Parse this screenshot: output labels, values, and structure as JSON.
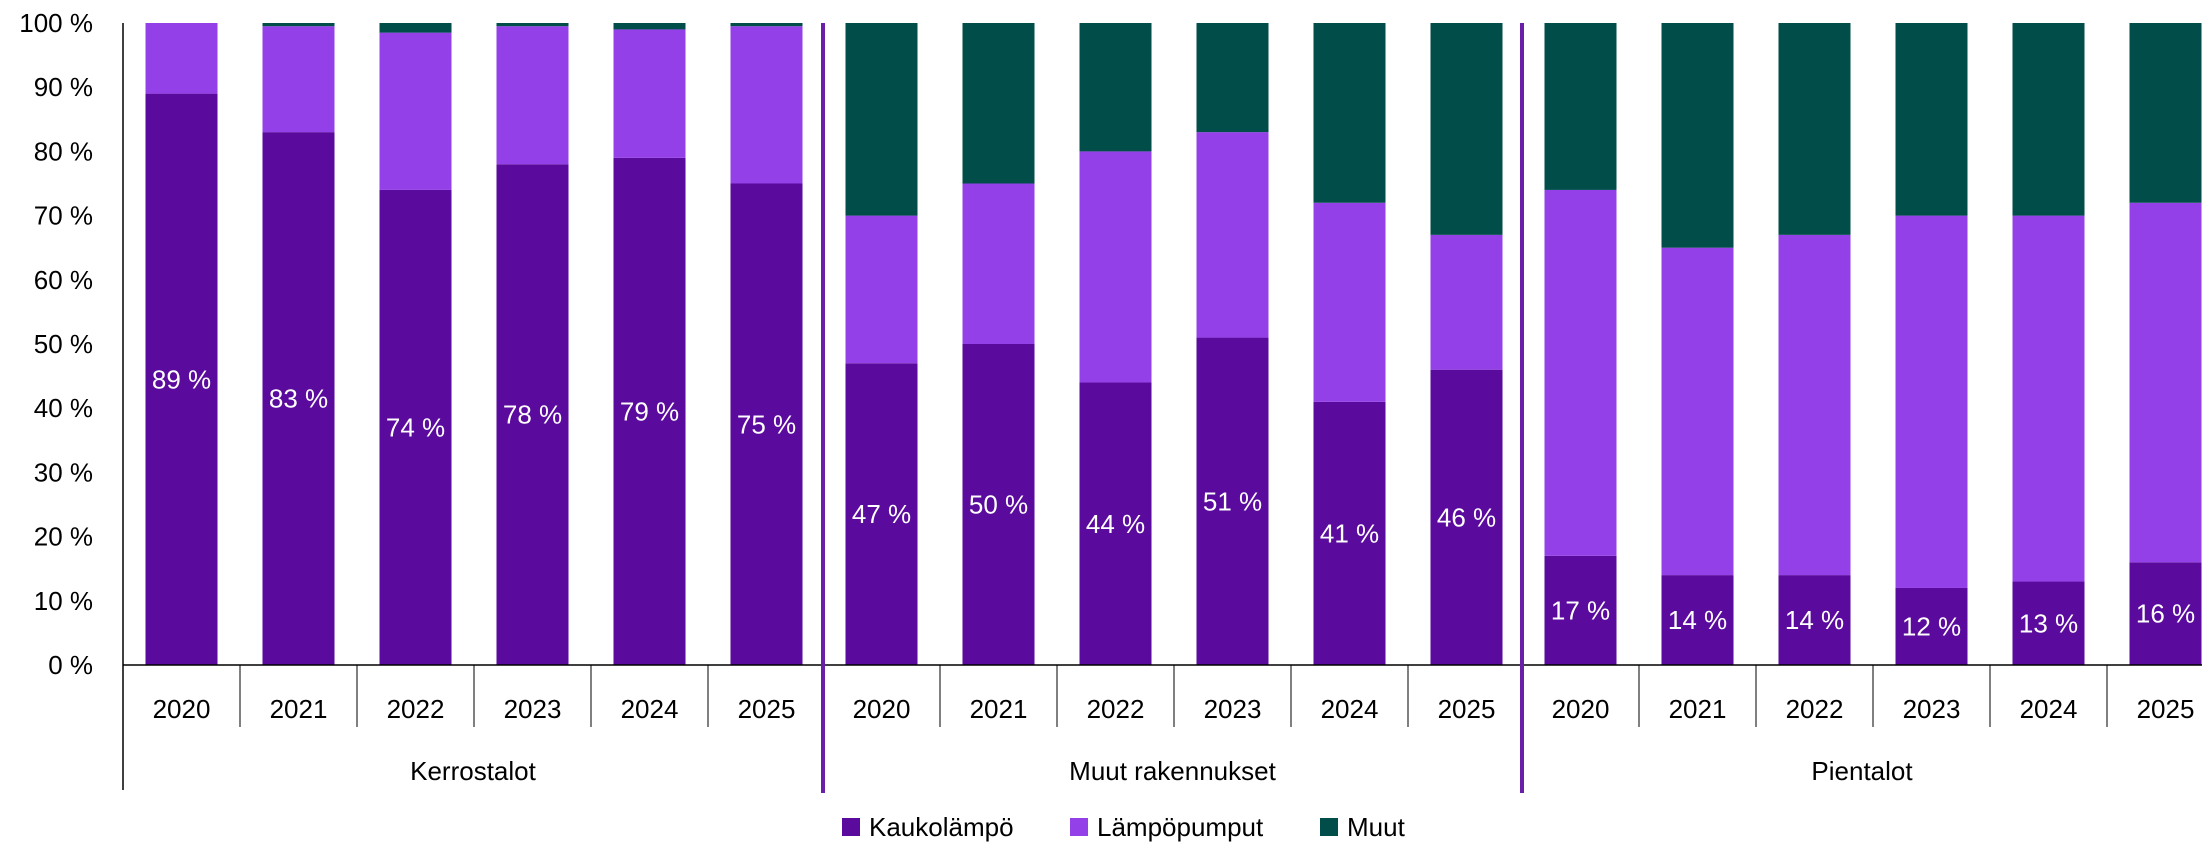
{
  "chart_data": {
    "type": "bar",
    "stacked": true,
    "ylim": [
      0,
      100
    ],
    "yticks": [
      "0 %",
      "10 %",
      "20 %",
      "30 %",
      "40 %",
      "50 %",
      "60 %",
      "70 %",
      "80 %",
      "90 %",
      "100 %"
    ],
    "grid": false,
    "legend_position": "bottom",
    "series_order": [
      "Kaukolämpö",
      "Lämpöpumput",
      "Muut"
    ],
    "colors": {
      "Kaukolämpö": "#5a0a9c",
      "Lämpöpumput": "#9340e8",
      "Muut": "#004d4a",
      "separator": "#6a1fa8"
    },
    "groups": [
      {
        "name": "Kerrostalot",
        "categories": [
          "2020",
          "2021",
          "2022",
          "2023",
          "2024",
          "2025"
        ],
        "series": [
          {
            "name": "Kaukolämpö",
            "values": [
              89,
              83,
              74,
              78,
              79,
              75
            ],
            "labels": [
              "89 %",
              "83 %",
              "74 %",
              "78 %",
              "79 %",
              "75 %"
            ]
          },
          {
            "name": "Lämpöpumput",
            "values": [
              11,
              16.5,
              24.5,
              21.5,
              20,
              24.5
            ]
          },
          {
            "name": "Muut",
            "values": [
              0,
              0.5,
              1.5,
              0.5,
              1,
              0.5
            ]
          }
        ]
      },
      {
        "name": "Muut rakennukset",
        "categories": [
          "2020",
          "2021",
          "2022",
          "2023",
          "2024",
          "2025"
        ],
        "series": [
          {
            "name": "Kaukolämpö",
            "values": [
              47,
              50,
              44,
              51,
              41,
              46
            ],
            "labels": [
              "47 %",
              "50 %",
              "44 %",
              "51 %",
              "41 %",
              "46 %"
            ]
          },
          {
            "name": "Lämpöpumput",
            "values": [
              23,
              25,
              36,
              32,
              31,
              21
            ]
          },
          {
            "name": "Muut",
            "values": [
              30,
              25,
              20,
              17,
              28,
              33
            ]
          }
        ]
      },
      {
        "name": "Pientalot",
        "categories": [
          "2020",
          "2021",
          "2022",
          "2023",
          "2024",
          "2025"
        ],
        "series": [
          {
            "name": "Kaukolämpö",
            "values": [
              17,
              14,
              14,
              12,
              13,
              16
            ],
            "labels": [
              "17 %",
              "14 %",
              "14 %",
              "12 %",
              "13 %",
              "16 %"
            ]
          },
          {
            "name": "Lämpöpumput",
            "values": [
              57,
              51,
              53,
              58,
              57,
              56
            ]
          },
          {
            "name": "Muut",
            "values": [
              26,
              35,
              33,
              30,
              30,
              28
            ]
          }
        ]
      }
    ]
  }
}
